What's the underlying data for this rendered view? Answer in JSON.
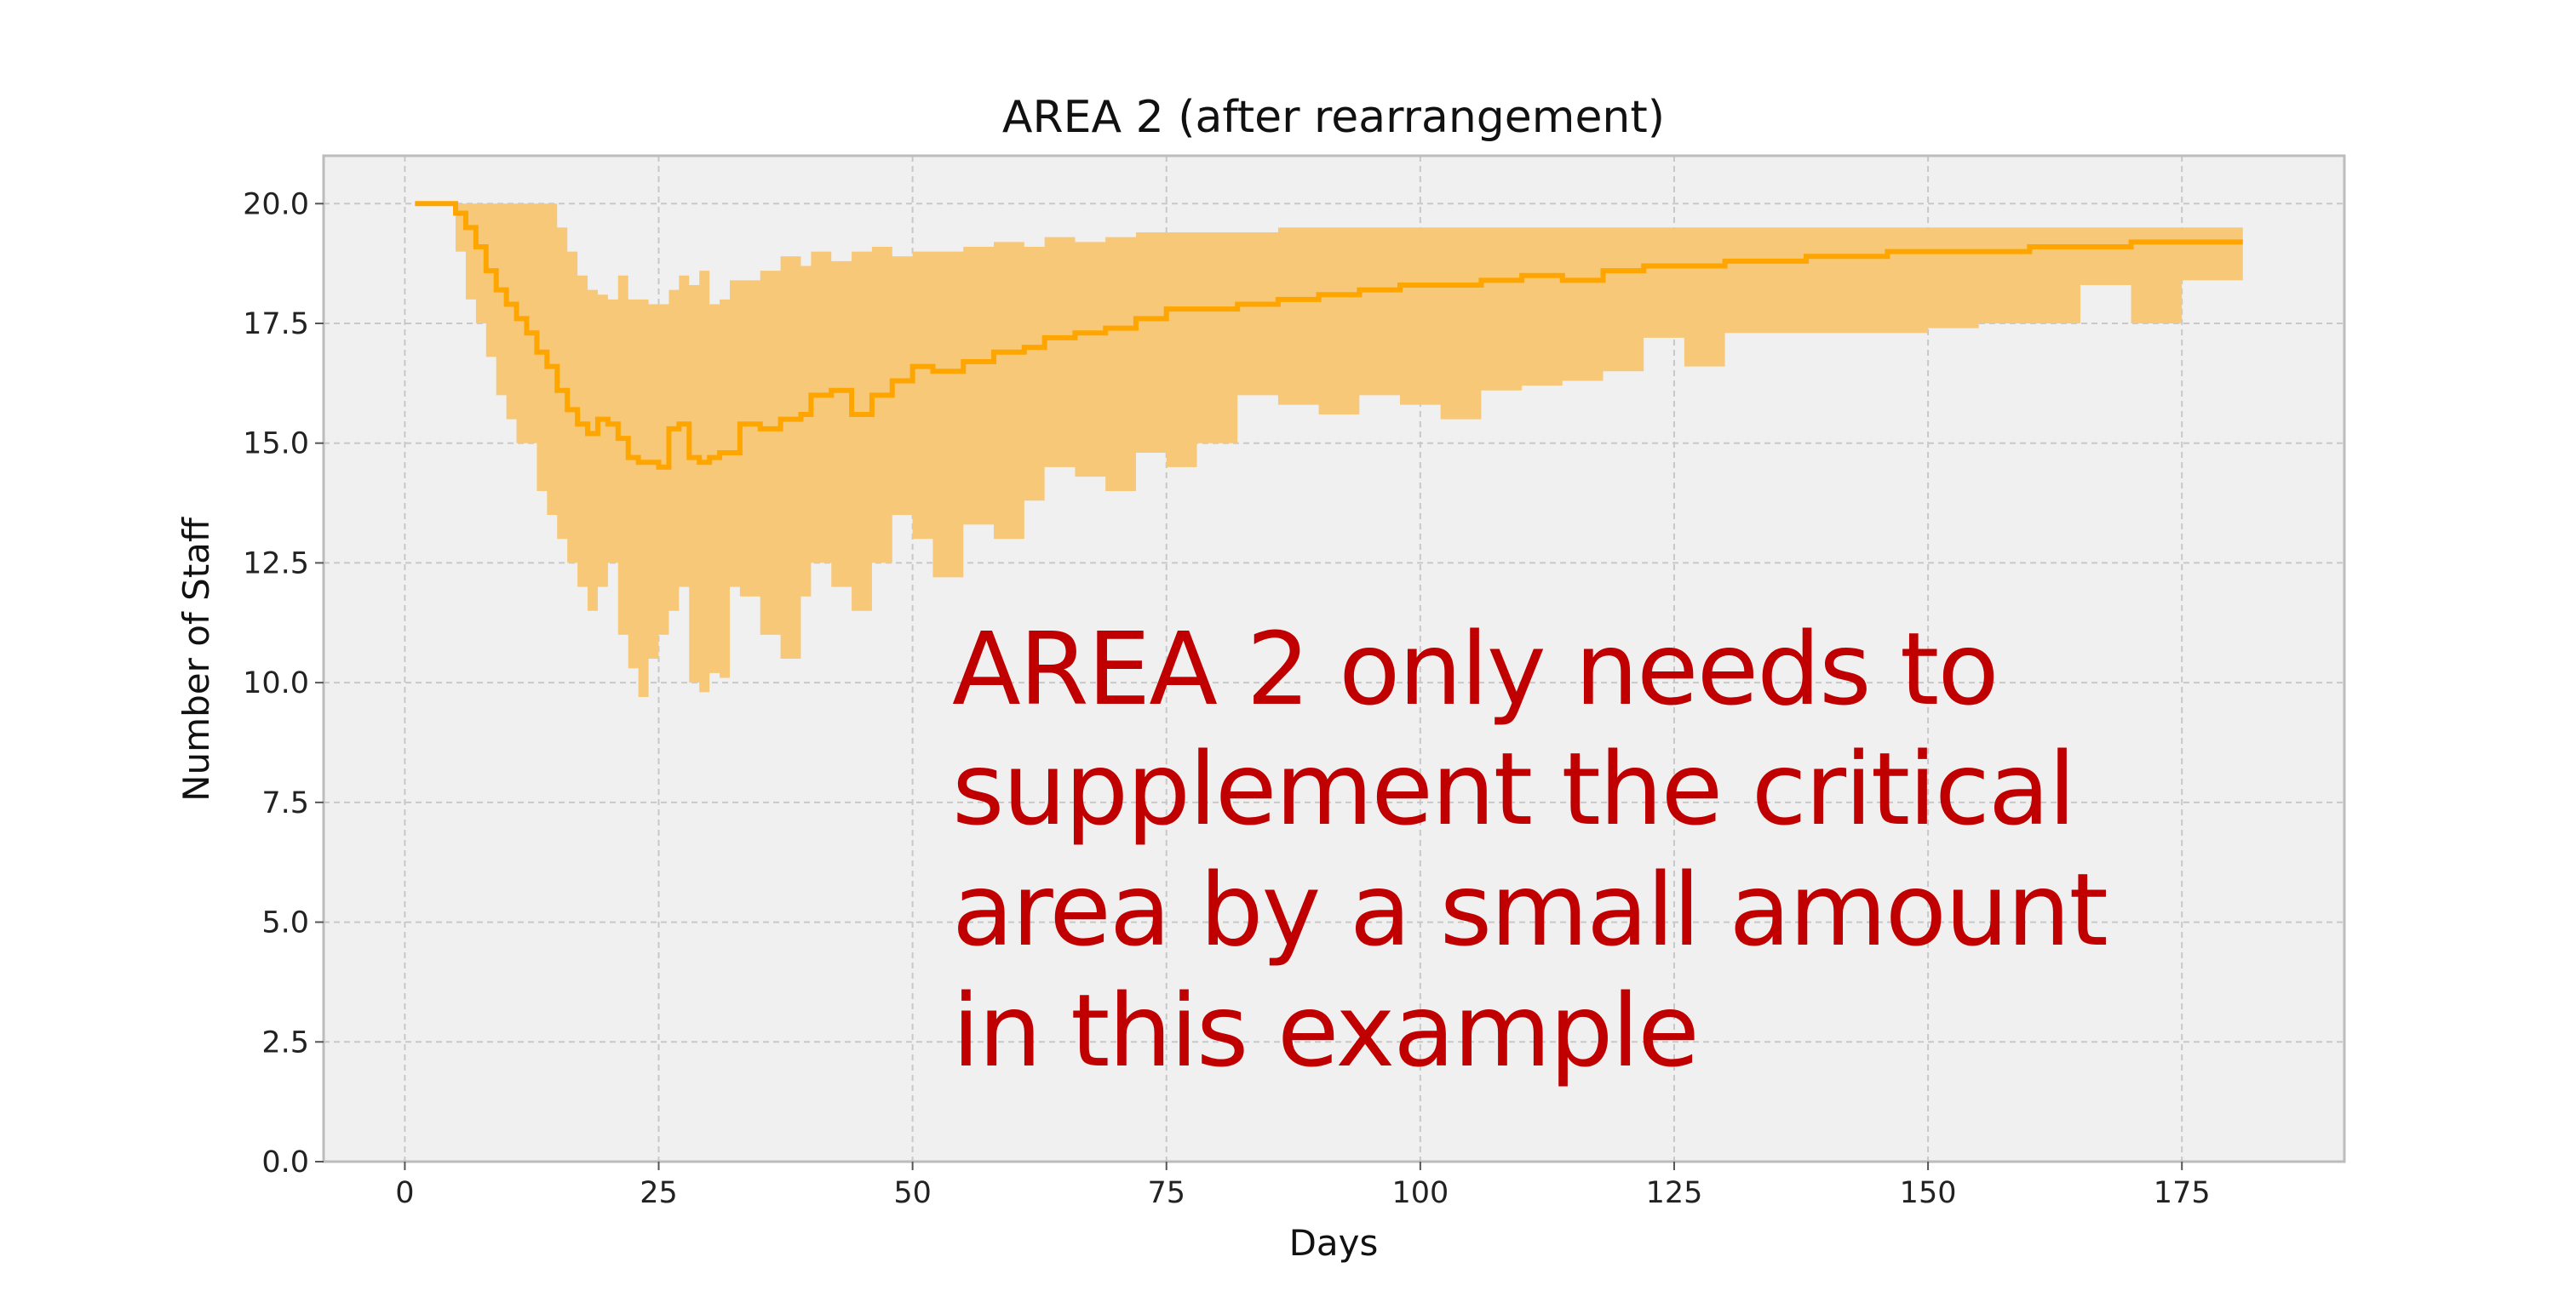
{
  "chart_data": {
    "type": "line",
    "title": "AREA 2 (after rearrangement)",
    "xlabel": "Days",
    "ylabel": "Number of Staff",
    "xlim": [
      -8,
      191
    ],
    "ylim": [
      0,
      21
    ],
    "xticks": [
      0,
      25,
      50,
      75,
      100,
      125,
      150,
      175
    ],
    "yticks": [
      0.0,
      2.5,
      5.0,
      7.5,
      10.0,
      12.5,
      15.0,
      17.5,
      20.0
    ],
    "ytick_labels": [
      "0.0",
      "2.5",
      "5.0",
      "7.5",
      "10.0",
      "12.5",
      "15.0",
      "17.5",
      "20.0"
    ],
    "xtick_labels": [
      "0",
      "25",
      "50",
      "75",
      "100",
      "125",
      "150",
      "175"
    ],
    "grid": true,
    "line_color": "#ffa500",
    "band_color": "#f6c878",
    "background": "#f0f0f0",
    "series": [
      {
        "step": true,
        "x": [
          1,
          3,
          5,
          6,
          7,
          8,
          9,
          10,
          11,
          12,
          13,
          14,
          15,
          16,
          17,
          18,
          19,
          20,
          21,
          22,
          23,
          24,
          25,
          26,
          27,
          28,
          29,
          30,
          31,
          32,
          33,
          35,
          37,
          39,
          40,
          42,
          44,
          46,
          48,
          50,
          52,
          55,
          58,
          61,
          63,
          66,
          69,
          72,
          75,
          78,
          82,
          86,
          90,
          94,
          98,
          102,
          106,
          110,
          114,
          118,
          122,
          126,
          130,
          134,
          138,
          142,
          146,
          150,
          155,
          160,
          165,
          170,
          175,
          181
        ],
        "values": [
          20.0,
          20.0,
          19.8,
          19.5,
          19.1,
          18.6,
          18.2,
          17.9,
          17.6,
          17.3,
          16.9,
          16.6,
          16.1,
          15.7,
          15.4,
          15.2,
          15.5,
          15.4,
          15.1,
          14.7,
          14.6,
          14.6,
          14.5,
          15.3,
          15.4,
          14.7,
          14.6,
          14.7,
          14.8,
          14.8,
          15.4,
          15.3,
          15.5,
          15.6,
          16.0,
          16.1,
          15.6,
          16.0,
          16.3,
          16.6,
          16.5,
          16.7,
          16.9,
          17.0,
          17.2,
          17.3,
          17.4,
          17.6,
          17.8,
          17.8,
          17.9,
          18.0,
          18.1,
          18.2,
          18.3,
          18.3,
          18.4,
          18.5,
          18.4,
          18.6,
          18.7,
          18.7,
          18.8,
          18.8,
          18.9,
          18.9,
          19.0,
          19.0,
          19.0,
          19.1,
          19.1,
          19.2,
          19.2,
          19.2
        ],
        "lower": [
          20.0,
          20.0,
          19.0,
          18.0,
          17.5,
          16.8,
          16.0,
          15.5,
          15.0,
          15.0,
          14.0,
          13.5,
          13.0,
          12.5,
          12.0,
          11.5,
          12.0,
          12.5,
          11.0,
          10.3,
          9.7,
          10.5,
          11.0,
          11.5,
          12.0,
          10.0,
          9.8,
          10.2,
          10.1,
          12.0,
          11.8,
          11.0,
          10.5,
          11.8,
          12.5,
          12.0,
          11.5,
          12.5,
          13.5,
          13.0,
          12.2,
          13.3,
          13.0,
          13.8,
          14.5,
          14.3,
          14.0,
          14.8,
          14.5,
          15.0,
          16.0,
          15.8,
          15.6,
          16.0,
          15.8,
          15.5,
          16.1,
          16.2,
          16.3,
          16.5,
          17.2,
          16.6,
          17.3,
          17.3,
          17.3,
          17.3,
          17.3,
          17.4,
          17.5,
          17.5,
          18.3,
          17.5,
          18.4,
          18.4
        ],
        "upper": [
          20.0,
          20.0,
          20.0,
          20.0,
          20.0,
          20.0,
          20.0,
          20.0,
          20.0,
          20.0,
          20.0,
          20.0,
          19.5,
          19.0,
          18.5,
          18.2,
          18.1,
          18.0,
          18.5,
          18.0,
          18.0,
          17.9,
          17.9,
          18.2,
          18.5,
          18.3,
          18.6,
          17.9,
          18.0,
          18.4,
          18.4,
          18.6,
          18.9,
          18.7,
          19.0,
          18.8,
          19.0,
          19.1,
          18.9,
          19.0,
          19.0,
          19.1,
          19.2,
          19.1,
          19.3,
          19.2,
          19.3,
          19.4,
          19.4,
          19.4,
          19.4,
          19.5,
          19.5,
          19.5,
          19.5,
          19.5,
          19.5,
          19.5,
          19.5,
          19.5,
          19.5,
          19.5,
          19.5,
          19.5,
          19.5,
          19.5,
          19.5,
          19.5,
          19.5,
          19.5,
          19.5,
          19.5,
          19.5,
          19.5
        ]
      }
    ],
    "annotation": {
      "lines": [
        "AREA  2 only needs to",
        "supplement the critical",
        "area by a small amount",
        "in this example"
      ],
      "color": "#c00000"
    }
  }
}
